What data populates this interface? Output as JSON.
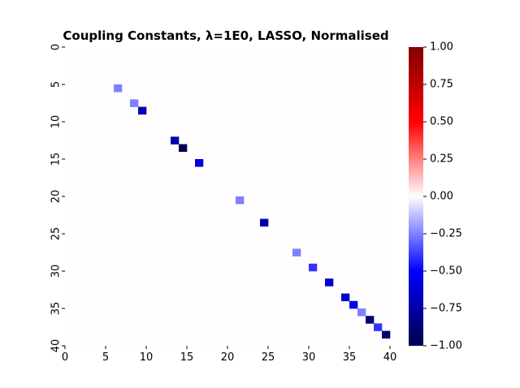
{
  "chart_data": {
    "type": "heatmap",
    "title": "Coupling Constants, λ=1E0, LASSO, Normalised",
    "xlabel": "",
    "ylabel": "",
    "grid": false,
    "matrix_size": 40,
    "x_ticks": [
      0,
      5,
      10,
      15,
      20,
      25,
      30,
      35,
      40
    ],
    "y_ticks": [
      0,
      5,
      10,
      15,
      20,
      25,
      30,
      35,
      40
    ],
    "cells": [
      {
        "row": 5,
        "col": 6,
        "value": -0.25
      },
      {
        "row": 7,
        "col": 8,
        "value": -0.25
      },
      {
        "row": 8,
        "col": 9,
        "value": -0.7
      },
      {
        "row": 12,
        "col": 13,
        "value": -0.7
      },
      {
        "row": 13,
        "col": 14,
        "value": -1.0
      },
      {
        "row": 15,
        "col": 16,
        "value": -0.6
      },
      {
        "row": 20,
        "col": 21,
        "value": -0.25
      },
      {
        "row": 23,
        "col": 24,
        "value": -0.75
      },
      {
        "row": 27,
        "col": 28,
        "value": -0.25
      },
      {
        "row": 29,
        "col": 30,
        "value": -0.4
      },
      {
        "row": 31,
        "col": 32,
        "value": -0.65
      },
      {
        "row": 33,
        "col": 34,
        "value": -0.65
      },
      {
        "row": 34,
        "col": 35,
        "value": -0.55
      },
      {
        "row": 35,
        "col": 36,
        "value": -0.25
      },
      {
        "row": 36,
        "col": 37,
        "value": -0.9
      },
      {
        "row": 37,
        "col": 38,
        "value": -0.4
      },
      {
        "row": 38,
        "col": 39,
        "value": -0.9
      }
    ],
    "background_value": 0.0,
    "colorbar": {
      "colormap": "seismic",
      "vmin": -1.0,
      "vmax": 1.0,
      "ticks": [
        1.0,
        0.75,
        0.5,
        0.25,
        0.0,
        -0.25,
        -0.5,
        -0.75,
        -1.0
      ],
      "tick_labels": [
        "1.00",
        "0.75",
        "0.50",
        "0.25",
        "0.00",
        "−0.25",
        "−0.50",
        "−0.75",
        "−1.00"
      ]
    }
  }
}
